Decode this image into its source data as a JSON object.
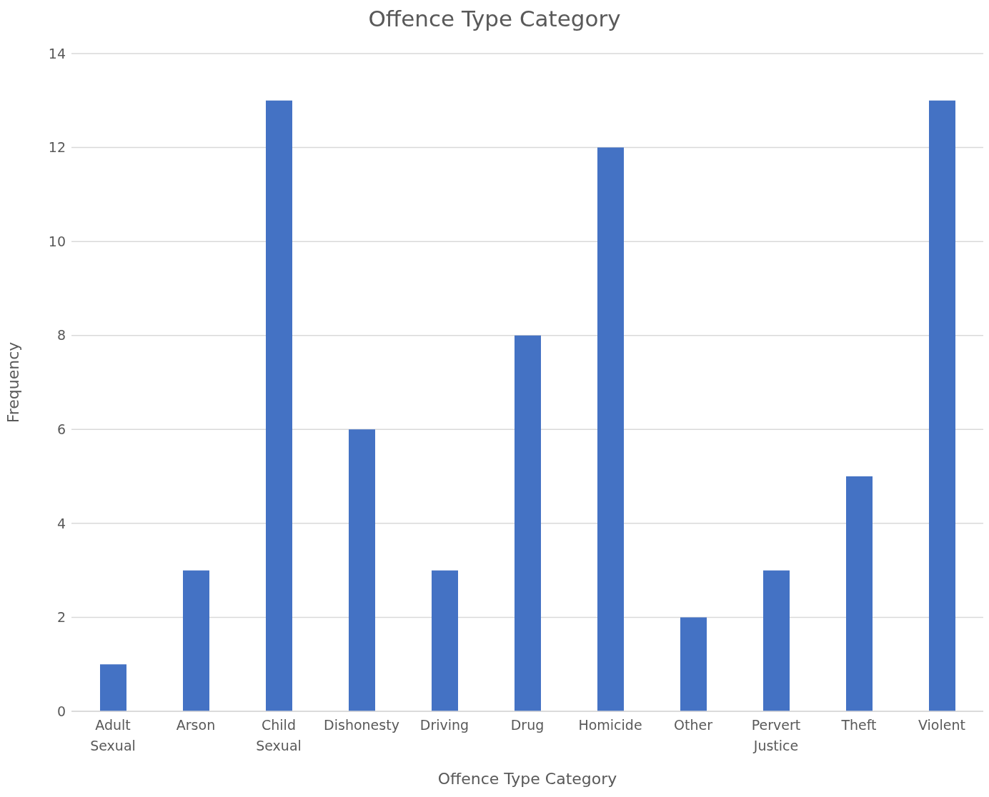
{
  "chart_data": {
    "type": "bar",
    "title": "Offence Type Category",
    "xlabel": "Offence Type Category",
    "ylabel": "Frequency",
    "categories": [
      "Adult Sexual",
      "Arson",
      "Child Sexual",
      "Dishonesty",
      "Driving",
      "Drug",
      "Homicide",
      "Other",
      "Pervert Justice",
      "Theft",
      "Violent"
    ],
    "values": [
      1,
      3,
      13,
      6,
      3,
      8,
      12,
      2,
      3,
      5,
      13
    ],
    "color": "#4472c4",
    "ylim": [
      0,
      14
    ],
    "yticks": [
      0,
      2,
      4,
      6,
      8,
      10,
      12,
      14
    ],
    "grid": "y"
  }
}
